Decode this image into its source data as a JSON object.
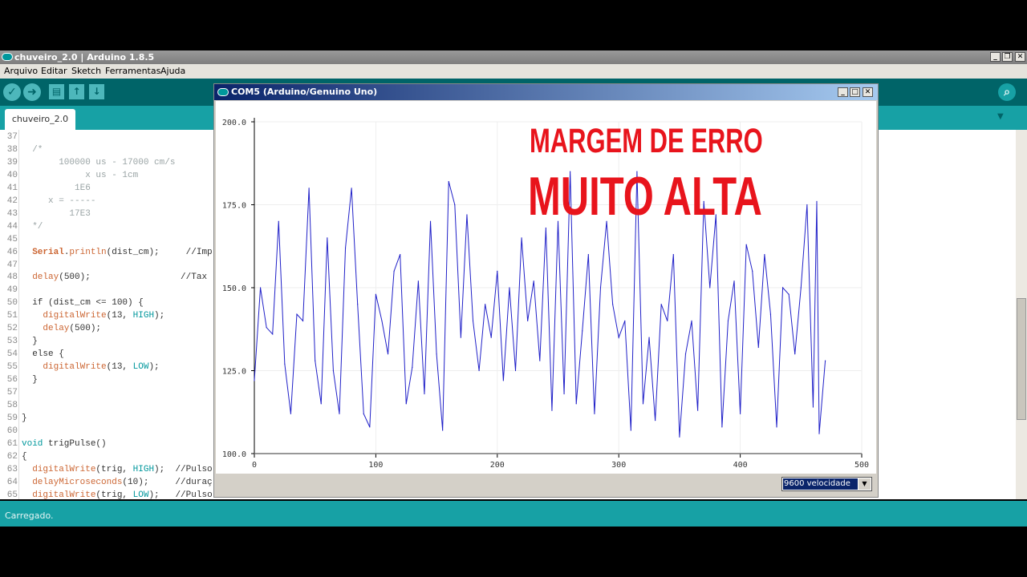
{
  "window": {
    "title": "chuveiro_2.0 | Arduino 1.8.5",
    "controls": [
      "_",
      "❐",
      "✕"
    ]
  },
  "menu": [
    "Arquivo",
    "Editar",
    "Sketch",
    "Ferramentas",
    "Ajuda"
  ],
  "toolbar": {
    "verify_icon": "✓",
    "upload_icon": "➜",
    "new_icon": "▤",
    "open_icon": "↑",
    "save_icon": "↓",
    "serial_monitor_icon": "⌕"
  },
  "tab": {
    "label": "chuveiro_2.0",
    "menu_icon": "▼"
  },
  "code": [
    {
      "n": "37",
      "s": []
    },
    {
      "n": "38",
      "s": [
        {
          "t": "  /*",
          "c": "cm"
        }
      ]
    },
    {
      "n": "39",
      "s": [
        {
          "t": "       100000 us - 17000 cm/s",
          "c": "cm"
        }
      ]
    },
    {
      "n": "40",
      "s": [
        {
          "t": "            x us - 1cm",
          "c": "cm"
        }
      ]
    },
    {
      "n": "41",
      "s": [
        {
          "t": "          1E6",
          "c": "cm"
        }
      ]
    },
    {
      "n": "42",
      "s": [
        {
          "t": "     x = -----",
          "c": "cm"
        }
      ]
    },
    {
      "n": "43",
      "s": [
        {
          "t": "         17E3",
          "c": "cm"
        }
      ]
    },
    {
      "n": "44",
      "s": [
        {
          "t": "  */",
          "c": "cm"
        }
      ]
    },
    {
      "n": "45",
      "s": []
    },
    {
      "n": "46",
      "s": [
        {
          "t": "  "
        },
        {
          "t": "Serial",
          "c": "kb"
        },
        {
          "t": "."
        },
        {
          "t": "println",
          "c": "k"
        },
        {
          "t": "(dist_cm);     //Imp"
        }
      ]
    },
    {
      "n": "47",
      "s": []
    },
    {
      "n": "48",
      "s": [
        {
          "t": "  "
        },
        {
          "t": "delay",
          "c": "k"
        },
        {
          "t": "(500);                 //Tax"
        }
      ]
    },
    {
      "n": "49",
      "s": []
    },
    {
      "n": "50",
      "s": [
        {
          "t": "  if (dist_cm <= 100) {"
        }
      ]
    },
    {
      "n": "51",
      "s": [
        {
          "t": "    "
        },
        {
          "t": "digitalWrite",
          "c": "k"
        },
        {
          "t": "(13, "
        },
        {
          "t": "HIGH",
          "c": "c"
        },
        {
          "t": ");"
        }
      ]
    },
    {
      "n": "52",
      "s": [
        {
          "t": "    "
        },
        {
          "t": "delay",
          "c": "k"
        },
        {
          "t": "(500);"
        }
      ]
    },
    {
      "n": "53",
      "s": [
        {
          "t": "  }"
        }
      ]
    },
    {
      "n": "54",
      "s": [
        {
          "t": "  else {"
        }
      ]
    },
    {
      "n": "55",
      "s": [
        {
          "t": "    "
        },
        {
          "t": "digitalWrite",
          "c": "k"
        },
        {
          "t": "(13, "
        },
        {
          "t": "LOW",
          "c": "c"
        },
        {
          "t": ");"
        }
      ]
    },
    {
      "n": "56",
      "s": [
        {
          "t": "  }"
        }
      ]
    },
    {
      "n": "57",
      "s": []
    },
    {
      "n": "58",
      "s": []
    },
    {
      "n": "59",
      "s": [
        {
          "t": "}"
        }
      ]
    },
    {
      "n": "60",
      "s": []
    },
    {
      "n": "61",
      "s": [
        {
          "t": "void",
          "c": "c"
        },
        {
          "t": " trigPulse()"
        }
      ]
    },
    {
      "n": "62",
      "s": [
        {
          "t": "{"
        }
      ]
    },
    {
      "n": "63",
      "s": [
        {
          "t": "  "
        },
        {
          "t": "digitalWrite",
          "c": "k"
        },
        {
          "t": "(trig, "
        },
        {
          "t": "HIGH",
          "c": "c"
        },
        {
          "t": ");  //Pulso"
        }
      ]
    },
    {
      "n": "64",
      "s": [
        {
          "t": "  "
        },
        {
          "t": "delayMicroseconds",
          "c": "k"
        },
        {
          "t": "(10);     //duraç"
        }
      ]
    },
    {
      "n": "65",
      "s": [
        {
          "t": "  "
        },
        {
          "t": "digitalWrite",
          "c": "k"
        },
        {
          "t": "(trig, "
        },
        {
          "t": "LOW",
          "c": "c"
        },
        {
          "t": ");   //Pulso"
        }
      ]
    }
  ],
  "status": "Carregado.",
  "plotter": {
    "title": "COM5 (Arduino/Genuino Uno)",
    "controls": [
      "_",
      "□",
      "✕"
    ],
    "overlay_line1": "MARGEM DE ERRO",
    "overlay_line2": "MUITO ALTA",
    "overlay_color": "#e8141c",
    "baud": "9600 velocidade",
    "baud_arrow": "▼"
  },
  "chart_data": {
    "type": "line",
    "xlim": [
      0,
      500
    ],
    "ylim": [
      100,
      200
    ],
    "xticks": [
      "0",
      "100",
      "200",
      "300",
      "400",
      "500"
    ],
    "yticks": [
      "100.0",
      "125.0",
      "150.0",
      "175.0",
      "200.0"
    ],
    "grid": true,
    "line_color": "#2020c8",
    "x": [
      0,
      5,
      10,
      15,
      20,
      25,
      30,
      35,
      40,
      45,
      50,
      55,
      60,
      65,
      70,
      75,
      80,
      85,
      90,
      95,
      100,
      105,
      110,
      115,
      120,
      125,
      130,
      135,
      140,
      145,
      150,
      155,
      160,
      165,
      170,
      175,
      180,
      185,
      190,
      195,
      200,
      205,
      210,
      215,
      220,
      225,
      230,
      235,
      240,
      245,
      250,
      255,
      260,
      265,
      270,
      275,
      280,
      285,
      290,
      295,
      300,
      305,
      310,
      315,
      320,
      325,
      330,
      335,
      340,
      345,
      350,
      355,
      360,
      365,
      370,
      375,
      380,
      385,
      390,
      395,
      400,
      405,
      410,
      415,
      420,
      425,
      430,
      435,
      440,
      445,
      450,
      455,
      460,
      463,
      465,
      470
    ],
    "values": [
      122,
      150,
      138,
      136,
      170,
      127,
      112,
      142,
      140,
      180,
      128,
      115,
      165,
      125,
      112,
      162,
      180,
      145,
      112,
      108,
      148,
      140,
      130,
      155,
      160,
      115,
      126,
      152,
      118,
      170,
      130,
      107,
      182,
      175,
      135,
      172,
      140,
      125,
      145,
      135,
      155,
      122,
      150,
      125,
      165,
      140,
      152,
      128,
      168,
      113,
      170,
      118,
      185,
      115,
      137,
      160,
      112,
      150,
      170,
      145,
      135,
      140,
      107,
      185,
      115,
      135,
      110,
      145,
      140,
      160,
      105,
      130,
      140,
      113,
      176,
      150,
      172,
      108,
      140,
      152,
      112,
      163,
      155,
      132,
      160,
      142,
      108,
      150,
      148,
      130,
      150,
      175,
      114,
      176,
      106,
      128
    ]
  }
}
